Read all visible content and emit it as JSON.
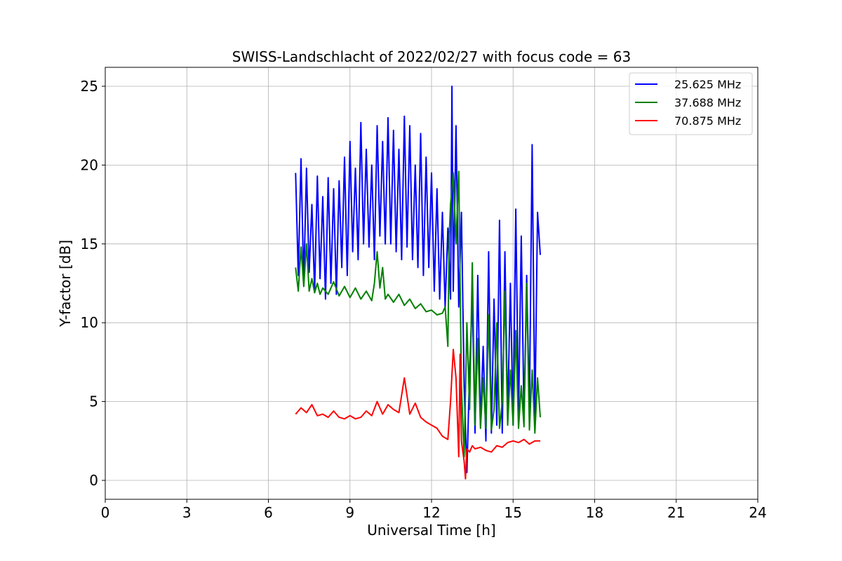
{
  "chart_data": {
    "type": "line",
    "title": "SWISS-Landschlacht of 2022/02/27 with focus code = 63",
    "xlabel": "Universal Time [h]",
    "ylabel": "Y-factor [dB]",
    "xlim": [
      0,
      24
    ],
    "ylim": [
      -1.2,
      26.2
    ],
    "xticks": [
      0,
      3,
      6,
      9,
      12,
      15,
      18,
      21,
      24
    ],
    "yticks": [
      0,
      5,
      10,
      15,
      20,
      25
    ],
    "grid": true,
    "legend": "top-right",
    "series": [
      {
        "name": "25.625 MHz",
        "color": "#0000ff",
        "x": [
          7.0,
          7.1,
          7.2,
          7.3,
          7.4,
          7.5,
          7.6,
          7.7,
          7.8,
          7.9,
          8.0,
          8.1,
          8.2,
          8.3,
          8.4,
          8.5,
          8.6,
          8.7,
          8.8,
          8.9,
          9.0,
          9.1,
          9.2,
          9.3,
          9.4,
          9.5,
          9.6,
          9.7,
          9.8,
          9.9,
          10.0,
          10.1,
          10.2,
          10.3,
          10.4,
          10.5,
          10.6,
          10.7,
          10.8,
          10.9,
          11.0,
          11.1,
          11.2,
          11.3,
          11.4,
          11.5,
          11.6,
          11.7,
          11.8,
          11.9,
          12.0,
          12.1,
          12.2,
          12.3,
          12.4,
          12.5,
          12.6,
          12.7,
          12.75,
          12.8,
          12.9,
          13.0,
          13.1,
          13.2,
          13.3,
          13.4,
          13.5,
          13.6,
          13.7,
          13.8,
          13.9,
          14.0,
          14.1,
          14.2,
          14.3,
          14.4,
          14.5,
          14.6,
          14.7,
          14.8,
          14.9,
          15.0,
          15.1,
          15.2,
          15.3,
          15.4,
          15.5,
          15.6,
          15.7,
          15.8,
          15.9,
          16.0
        ],
        "y": [
          19.5,
          13.0,
          20.4,
          12.5,
          19.8,
          13.2,
          17.5,
          12.0,
          19.3,
          12.8,
          18.0,
          11.5,
          19.2,
          12.5,
          18.5,
          11.8,
          19.0,
          13.5,
          20.5,
          13.0,
          21.5,
          14.5,
          19.8,
          14.0,
          22.7,
          15.0,
          21.0,
          14.8,
          20.0,
          14.0,
          22.5,
          15.5,
          21.5,
          15.0,
          23.0,
          15.0,
          22.2,
          14.5,
          21.0,
          14.0,
          23.1,
          14.8,
          22.5,
          14.0,
          20.0,
          13.5,
          22.0,
          13.0,
          20.5,
          13.5,
          19.5,
          12.0,
          18.5,
          11.5,
          17.0,
          11.0,
          16.0,
          11.5,
          25.0,
          12.0,
          22.5,
          11.0,
          17.0,
          6.0,
          0.5,
          7.0,
          11.5,
          3.0,
          13.0,
          3.5,
          8.5,
          2.5,
          14.5,
          3.0,
          11.5,
          3.5,
          16.5,
          3.0,
          14.5,
          4.0,
          12.5,
          3.5,
          17.2,
          4.0,
          15.5,
          4.0,
          13.0,
          4.5,
          21.3,
          4.0,
          17.0,
          14.3
        ]
      },
      {
        "name": "37.688 MHz",
        "color": "#008000",
        "x": [
          7.0,
          7.1,
          7.2,
          7.3,
          7.4,
          7.5,
          7.6,
          7.7,
          7.8,
          7.9,
          8.0,
          8.2,
          8.4,
          8.6,
          8.8,
          9.0,
          9.2,
          9.4,
          9.6,
          9.8,
          9.9,
          10.0,
          10.1,
          10.2,
          10.3,
          10.4,
          10.6,
          10.8,
          11.0,
          11.2,
          11.4,
          11.6,
          11.8,
          12.0,
          12.2,
          12.4,
          12.5,
          12.6,
          12.65,
          12.7,
          12.8,
          12.9,
          13.0,
          13.1,
          13.2,
          13.3,
          13.4,
          13.5,
          13.6,
          13.7,
          13.8,
          13.9,
          14.0,
          14.1,
          14.2,
          14.3,
          14.4,
          14.5,
          14.6,
          14.7,
          14.8,
          14.9,
          15.0,
          15.1,
          15.2,
          15.3,
          15.4,
          15.5,
          15.6,
          15.7,
          15.8,
          15.9,
          16.0
        ],
        "y": [
          13.5,
          12.0,
          14.8,
          12.3,
          15.0,
          12.0,
          12.8,
          11.9,
          12.5,
          11.8,
          12.2,
          11.8,
          12.6,
          11.7,
          12.3,
          11.6,
          12.2,
          11.5,
          12.0,
          11.4,
          12.5,
          14.5,
          12.2,
          13.5,
          11.5,
          11.8,
          11.3,
          11.8,
          11.1,
          11.5,
          10.9,
          11.2,
          10.7,
          10.8,
          10.5,
          10.6,
          11.0,
          8.5,
          15.5,
          17.5,
          19.5,
          15.0,
          19.6,
          6.0,
          1.5,
          10.0,
          4.5,
          13.8,
          3.5,
          9.0,
          3.3,
          6.5,
          3.3,
          10.5,
          3.2,
          4.5,
          10.0,
          3.3,
          5.0,
          12.0,
          3.5,
          7.0,
          3.5,
          9.5,
          3.3,
          6.0,
          3.4,
          12.5,
          3.2,
          7.0,
          3.0,
          6.5,
          4.0
        ]
      },
      {
        "name": "70.875 MHz",
        "color": "#ff0000",
        "x": [
          7.0,
          7.2,
          7.4,
          7.6,
          7.8,
          8.0,
          8.2,
          8.4,
          8.6,
          8.8,
          9.0,
          9.2,
          9.4,
          9.6,
          9.8,
          10.0,
          10.2,
          10.4,
          10.6,
          10.8,
          11.0,
          11.2,
          11.4,
          11.6,
          11.8,
          12.0,
          12.2,
          12.4,
          12.6,
          12.7,
          12.8,
          12.9,
          13.0,
          13.05,
          13.1,
          13.2,
          13.25,
          13.3,
          13.4,
          13.5,
          13.6,
          13.8,
          14.0,
          14.2,
          14.4,
          14.6,
          14.8,
          15.0,
          15.2,
          15.4,
          15.6,
          15.8,
          16.0
        ],
        "y": [
          4.2,
          4.6,
          4.3,
          4.8,
          4.1,
          4.2,
          4.0,
          4.4,
          4.0,
          3.9,
          4.1,
          3.9,
          4.0,
          4.4,
          4.1,
          5.0,
          4.2,
          4.8,
          4.5,
          4.3,
          6.5,
          4.2,
          4.9,
          4.0,
          3.7,
          3.5,
          3.3,
          2.8,
          2.6,
          5.0,
          8.3,
          6.5,
          1.5,
          8.0,
          2.5,
          1.2,
          0.1,
          2.0,
          1.8,
          2.2,
          2.0,
          2.1,
          1.9,
          1.8,
          2.2,
          2.1,
          2.4,
          2.5,
          2.4,
          2.6,
          2.3,
          2.5,
          2.5
        ]
      }
    ]
  }
}
